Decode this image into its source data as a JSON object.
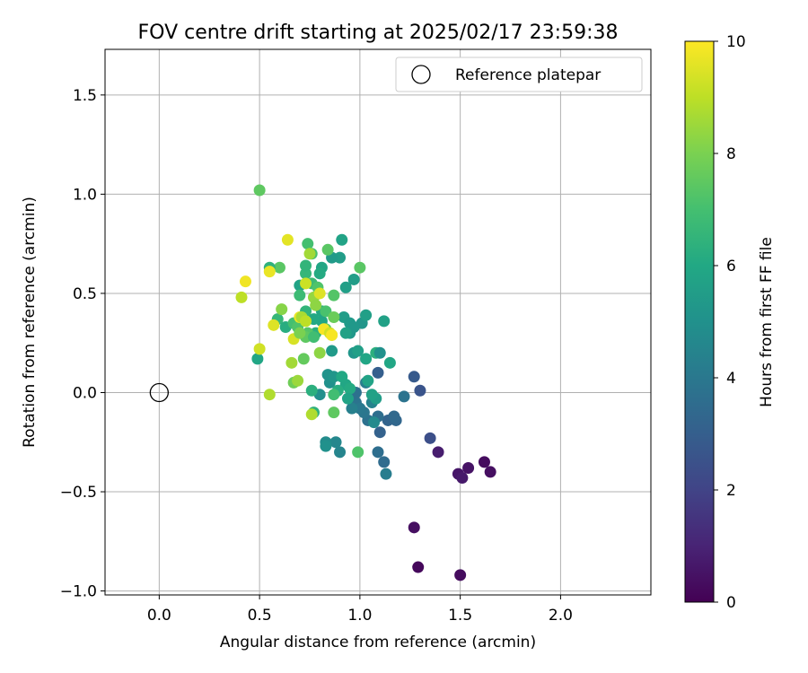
{
  "chart_data": {
    "type": "scatter",
    "title": "FOV centre drift starting at 2025/02/17 23:59:38",
    "xlabel": "Angular distance from reference (arcmin)",
    "ylabel": "Rotation from reference (arcmin)",
    "xlim": [
      -0.27,
      2.45
    ],
    "ylim": [
      -1.02,
      1.73
    ],
    "xticks": [
      0.0,
      0.5,
      1.0,
      1.5,
      2.0
    ],
    "xtick_labels": [
      "0.0",
      "0.5",
      "1.0",
      "1.5",
      "2.0"
    ],
    "yticks": [
      -1.0,
      -0.5,
      0.0,
      0.5,
      1.0,
      1.5
    ],
    "ytick_labels": [
      "−1.0",
      "−0.5",
      "0.0",
      "0.5",
      "1.0",
      "1.5"
    ],
    "grid": true,
    "colormap": "viridis",
    "colorbar": {
      "label": "Hours from first FF file",
      "range": [
        0,
        10
      ],
      "ticks": [
        0,
        2,
        4,
        6,
        8,
        10
      ],
      "tick_labels": [
        "0",
        "2",
        "4",
        "6",
        "8",
        "10"
      ]
    },
    "legend": {
      "position": "top-right",
      "entries": [
        "Reference platepar"
      ]
    },
    "reference_point": {
      "x": 0.0,
      "y": 0.0,
      "name": "Reference platepar"
    },
    "points": [
      [
        1.29,
        -0.88,
        0.2
      ],
      [
        1.5,
        -0.92,
        0.3
      ],
      [
        1.27,
        -0.68,
        0.4
      ],
      [
        1.49,
        -0.41,
        0.6
      ],
      [
        1.51,
        -0.43,
        0.7
      ],
      [
        1.54,
        -0.38,
        0.5
      ],
      [
        1.62,
        -0.35,
        0.3
      ],
      [
        1.65,
        -0.4,
        0.4
      ],
      [
        1.39,
        -0.3,
        0.8
      ],
      [
        1.35,
        -0.23,
        2.4
      ],
      [
        1.3,
        0.01,
        2.6
      ],
      [
        1.27,
        0.08,
        2.8
      ],
      [
        1.09,
        0.1,
        3.0
      ],
      [
        1.1,
        -0.2,
        3.1
      ],
      [
        1.14,
        -0.14,
        3.2
      ],
      [
        1.18,
        -0.14,
        3.3
      ],
      [
        1.17,
        -0.12,
        3.4
      ],
      [
        1.12,
        -0.35,
        3.5
      ],
      [
        1.09,
        -0.3,
        3.6
      ],
      [
        1.13,
        -0.41,
        4.2
      ],
      [
        1.22,
        -0.02,
        3.8
      ],
      [
        1.09,
        -0.12,
        3.6
      ],
      [
        1.04,
        -0.14,
        3.7
      ],
      [
        1.02,
        -0.1,
        3.9
      ],
      [
        0.98,
        -0.05,
        3.8
      ],
      [
        0.98,
        0.0,
        3.7
      ],
      [
        1.0,
        -0.08,
        4.0
      ],
      [
        1.03,
        0.05,
        4.2
      ],
      [
        0.96,
        -0.08,
        4.3
      ],
      [
        1.06,
        -0.05,
        4.4
      ],
      [
        0.9,
        -0.3,
        4.5
      ],
      [
        0.88,
        -0.25,
        4.6
      ],
      [
        0.83,
        -0.25,
        4.8
      ],
      [
        0.83,
        -0.27,
        5.0
      ],
      [
        0.8,
        -0.01,
        4.9
      ],
      [
        0.85,
        0.05,
        5.0
      ],
      [
        0.84,
        0.09,
        5.1
      ],
      [
        0.87,
        0.08,
        5.2
      ],
      [
        1.08,
        -0.03,
        5.5
      ],
      [
        1.06,
        -0.01,
        5.7
      ],
      [
        1.04,
        0.06,
        5.8
      ],
      [
        0.93,
        0.04,
        5.9
      ],
      [
        0.95,
        0.02,
        6.1
      ],
      [
        0.91,
        0.08,
        6.0
      ],
      [
        0.94,
        -0.03,
        5.8
      ],
      [
        0.89,
        0.01,
        6.2
      ],
      [
        0.76,
        0.01,
        6.3
      ],
      [
        0.86,
        0.21,
        5.4
      ],
      [
        0.95,
        0.3,
        5.3
      ],
      [
        0.97,
        0.2,
        5.2
      ],
      [
        0.99,
        0.21,
        5.6
      ],
      [
        1.03,
        0.17,
        5.9
      ],
      [
        1.08,
        0.2,
        6.3
      ],
      [
        1.1,
        0.2,
        5.0
      ],
      [
        1.07,
        -0.15,
        4.7
      ],
      [
        1.15,
        0.15,
        5.9
      ],
      [
        1.12,
        0.36,
        5.7
      ],
      [
        0.97,
        0.57,
        5.5
      ],
      [
        0.93,
        0.53,
        5.6
      ],
      [
        0.92,
        0.38,
        5.5
      ],
      [
        0.95,
        0.35,
        5.4
      ],
      [
        1.01,
        0.35,
        5.2
      ],
      [
        1.03,
        0.39,
        5.6
      ],
      [
        0.97,
        0.33,
        5.3
      ],
      [
        0.93,
        0.3,
        5.7
      ],
      [
        0.9,
        0.68,
        5.5
      ],
      [
        0.91,
        0.77,
        5.8
      ],
      [
        0.86,
        0.68,
        5.4
      ],
      [
        0.81,
        0.63,
        5.9
      ],
      [
        0.8,
        0.6,
        6.1
      ],
      [
        0.81,
        0.41,
        6.0
      ],
      [
        0.81,
        0.36,
        5.9
      ],
      [
        0.77,
        0.37,
        6.0
      ],
      [
        0.78,
        0.3,
        6.3
      ],
      [
        0.73,
        0.41,
        6.5
      ],
      [
        0.73,
        0.6,
        6.6
      ],
      [
        0.73,
        0.64,
        6.5
      ],
      [
        0.7,
        0.54,
        5.8
      ],
      [
        0.7,
        0.49,
        6.8
      ],
      [
        0.76,
        0.55,
        6.8
      ],
      [
        0.79,
        0.53,
        7.2
      ],
      [
        0.74,
        0.75,
        7.0
      ],
      [
        0.76,
        0.7,
        7.1
      ],
      [
        0.84,
        0.72,
        7.4
      ],
      [
        0.87,
        0.49,
        7.3
      ],
      [
        0.83,
        0.41,
        7.1
      ],
      [
        0.6,
        0.63,
        7.4
      ],
      [
        0.55,
        0.63,
        6.4
      ],
      [
        0.59,
        0.37,
        6.6
      ],
      [
        0.63,
        0.33,
        6.2
      ],
      [
        0.67,
        0.35,
        7.0
      ],
      [
        0.69,
        0.33,
        7.2
      ],
      [
        0.74,
        0.3,
        7.3
      ],
      [
        0.73,
        0.28,
        7.5
      ],
      [
        0.77,
        0.28,
        6.9
      ],
      [
        0.83,
        0.32,
        7.6
      ],
      [
        0.86,
        0.29,
        8.2
      ],
      [
        0.87,
        0.38,
        7.7
      ],
      [
        0.72,
        0.17,
        7.6
      ],
      [
        0.8,
        0.2,
        8.3
      ],
      [
        0.87,
        -0.01,
        6.9
      ],
      [
        0.77,
        -0.1,
        6.4
      ],
      [
        0.76,
        -0.11,
        8.8
      ],
      [
        0.87,
        -0.1,
        7.5
      ],
      [
        0.99,
        -0.3,
        7.2
      ],
      [
        1.0,
        0.63,
        7.4
      ],
      [
        0.5,
        1.02,
        7.5
      ],
      [
        0.49,
        0.17,
        5.9
      ],
      [
        0.5,
        0.22,
        9.3
      ],
      [
        0.41,
        0.48,
        9.0
      ],
      [
        0.43,
        0.56,
        9.8
      ],
      [
        0.55,
        0.61,
        9.7
      ],
      [
        0.57,
        0.34,
        9.5
      ],
      [
        0.55,
        -0.01,
        8.8
      ],
      [
        0.66,
        0.15,
        8.6
      ],
      [
        0.67,
        0.05,
        7.8
      ],
      [
        0.69,
        0.06,
        8.5
      ],
      [
        0.67,
        0.27,
        9.4
      ],
      [
        0.61,
        0.42,
        8.2
      ],
      [
        0.64,
        0.77,
        9.6
      ],
      [
        0.7,
        0.38,
        9.7
      ],
      [
        0.71,
        0.38,
        8.7
      ],
      [
        0.73,
        0.55,
        9.2
      ],
      [
        0.75,
        0.7,
        8.6
      ],
      [
        0.77,
        0.48,
        8.4
      ],
      [
        0.8,
        0.5,
        9.5
      ],
      [
        0.82,
        0.32,
        9.9
      ],
      [
        0.85,
        0.3,
        9.3
      ],
      [
        0.86,
        0.29,
        9.9
      ],
      [
        0.73,
        0.36,
        9.0
      ],
      [
        0.78,
        0.44,
        8.3
      ],
      [
        0.7,
        0.3,
        8.0
      ]
    ]
  }
}
